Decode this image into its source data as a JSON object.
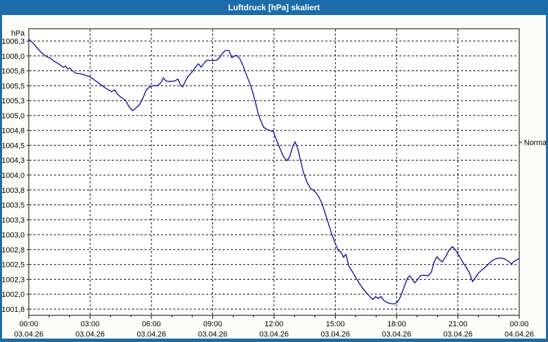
{
  "window": {
    "title": "Luftdruck [hPa] skaliert"
  },
  "colors": {
    "titlebar": "#1b6ca8",
    "border": "#1b6ca8",
    "content_bg": "#fcfcf8",
    "plot_bg": "#ffffff",
    "grid": "#000000",
    "axis": "#000000",
    "line": "#0000ab",
    "title_text": "#ffffff",
    "label_text": "#000000"
  },
  "chart_data": {
    "type": "line",
    "title": "Luftdruck [hPa] skaliert",
    "unit_label": "hPa",
    "grid": "dashed",
    "legend_position": "none",
    "y_axis": {
      "max_value": 1006.25,
      "min_value": 1001.75,
      "step": 0.25,
      "tick_labels": [
        "1006,3",
        "1006,0",
        "1005,8",
        "1005,5",
        "1005,3",
        "1005,0",
        "1004,8",
        "1004,5",
        "1004,3",
        "1004,0",
        "1003,8",
        "1003,5",
        "1003,3",
        "1003,0",
        "1002,8",
        "1002,5",
        "1002,3",
        "1002,0",
        "1001,8"
      ],
      "frame_top_value": 1006.46,
      "frame_bottom_value": 1001.62
    },
    "x_axis": {
      "total_hours": 24,
      "major_step_hours": 3,
      "minor_step_hours": 1,
      "tick_times": [
        "00:00",
        "03:00",
        "06:00",
        "09:00",
        "12:00",
        "15:00",
        "18:00",
        "21:00",
        "00:00"
      ],
      "tick_dates": [
        "03.04.26",
        "03.04.26",
        "03.04.26",
        "03.04.26",
        "03.04.26",
        "03.04.26",
        "03.04.26",
        "03.04.26",
        "04.04.26"
      ]
    },
    "right_marker": {
      "label": "Normal",
      "value": 1004.55
    },
    "series": [
      {
        "name": "Luftdruck skaliert",
        "color": "#0000ab",
        "points": [
          [
            0,
            1006.28
          ],
          [
            10,
            1006.23
          ],
          [
            24,
            1006.14
          ],
          [
            38,
            1006.05
          ],
          [
            52,
            1005.99
          ],
          [
            64,
            1005.96
          ],
          [
            74,
            1005.91
          ],
          [
            84,
            1005.88
          ],
          [
            94,
            1005.84
          ],
          [
            102,
            1005.81
          ],
          [
            108,
            1005.83
          ],
          [
            114,
            1005.78
          ],
          [
            120,
            1005.8
          ],
          [
            128,
            1005.75
          ],
          [
            138,
            1005.71
          ],
          [
            152,
            1005.7
          ],
          [
            164,
            1005.68
          ],
          [
            180,
            1005.65
          ],
          [
            194,
            1005.59
          ],
          [
            209,
            1005.53
          ],
          [
            223,
            1005.47
          ],
          [
            234,
            1005.43
          ],
          [
            244,
            1005.4
          ],
          [
            252,
            1005.43
          ],
          [
            260,
            1005.36
          ],
          [
            270,
            1005.31
          ],
          [
            278,
            1005.28
          ],
          [
            286,
            1005.24
          ],
          [
            294,
            1005.15
          ],
          [
            305,
            1005.08
          ],
          [
            315,
            1005.13
          ],
          [
            325,
            1005.18
          ],
          [
            335,
            1005.29
          ],
          [
            345,
            1005.43
          ],
          [
            355,
            1005.48
          ],
          [
            365,
            1005.5
          ],
          [
            379,
            1005.5
          ],
          [
            389,
            1005.56
          ],
          [
            395,
            1005.63
          ],
          [
            403,
            1005.58
          ],
          [
            415,
            1005.57
          ],
          [
            428,
            1005.58
          ],
          [
            438,
            1005.61
          ],
          [
            446,
            1005.51
          ],
          [
            452,
            1005.48
          ],
          [
            460,
            1005.58
          ],
          [
            468,
            1005.66
          ],
          [
            478,
            1005.72
          ],
          [
            488,
            1005.8
          ],
          [
            498,
            1005.87
          ],
          [
            506,
            1005.81
          ],
          [
            516,
            1005.89
          ],
          [
            524,
            1005.93
          ],
          [
            540,
            1005.92
          ],
          [
            552,
            1005.93
          ],
          [
            560,
            1005.97
          ],
          [
            568,
            1006.04
          ],
          [
            577,
            1006.09
          ],
          [
            588,
            1006.09
          ],
          [
            596,
            1005.97
          ],
          [
            604,
            1006.0
          ],
          [
            611,
            1006.01
          ],
          [
            620,
            1005.95
          ],
          [
            628,
            1005.85
          ],
          [
            636,
            1005.73
          ],
          [
            644,
            1005.61
          ],
          [
            652,
            1005.49
          ],
          [
            659,
            1005.36
          ],
          [
            667,
            1005.19
          ],
          [
            674,
            1005.02
          ],
          [
            682,
            1004.9
          ],
          [
            690,
            1004.8
          ],
          [
            701,
            1004.76
          ],
          [
            718,
            1004.73
          ],
          [
            728,
            1004.58
          ],
          [
            738,
            1004.44
          ],
          [
            748,
            1004.31
          ],
          [
            758,
            1004.24
          ],
          [
            766,
            1004.31
          ],
          [
            774,
            1004.46
          ],
          [
            782,
            1004.56
          ],
          [
            790,
            1004.44
          ],
          [
            798,
            1004.24
          ],
          [
            806,
            1004.05
          ],
          [
            817,
            1003.88
          ],
          [
            827,
            1003.78
          ],
          [
            839,
            1003.73
          ],
          [
            849,
            1003.66
          ],
          [
            859,
            1003.55
          ],
          [
            869,
            1003.38
          ],
          [
            879,
            1003.2
          ],
          [
            889,
            1003.02
          ],
          [
            900,
            1002.85
          ],
          [
            908,
            1002.74
          ],
          [
            918,
            1002.7
          ],
          [
            924,
            1002.62
          ],
          [
            931,
            1002.67
          ],
          [
            940,
            1002.47
          ],
          [
            950,
            1002.38
          ],
          [
            960,
            1002.28
          ],
          [
            972,
            1002.17
          ],
          [
            982,
            1002.09
          ],
          [
            992,
            1002.02
          ],
          [
            1002,
            1001.96
          ],
          [
            1010,
            1001.91
          ],
          [
            1018,
            1001.96
          ],
          [
            1026,
            1001.93
          ],
          [
            1034,
            1001.96
          ],
          [
            1042,
            1001.9
          ],
          [
            1052,
            1001.86
          ],
          [
            1065,
            1001.84
          ],
          [
            1075,
            1001.84
          ],
          [
            1081,
            1001.86
          ],
          [
            1089,
            1001.93
          ],
          [
            1097,
            1002.04
          ],
          [
            1105,
            1002.17
          ],
          [
            1113,
            1002.28
          ],
          [
            1119,
            1002.31
          ],
          [
            1127,
            1002.24
          ],
          [
            1133,
            1002.19
          ],
          [
            1141,
            1002.24
          ],
          [
            1149,
            1002.31
          ],
          [
            1161,
            1002.32
          ],
          [
            1173,
            1002.31
          ],
          [
            1182,
            1002.37
          ],
          [
            1190,
            1002.54
          ],
          [
            1198,
            1002.63
          ],
          [
            1206,
            1002.58
          ],
          [
            1214,
            1002.54
          ],
          [
            1224,
            1002.63
          ],
          [
            1234,
            1002.74
          ],
          [
            1244,
            1002.8
          ],
          [
            1252,
            1002.75
          ],
          [
            1262,
            1002.66
          ],
          [
            1272,
            1002.56
          ],
          [
            1282,
            1002.47
          ],
          [
            1293,
            1002.37
          ],
          [
            1303,
            1002.21
          ],
          [
            1311,
            1002.28
          ],
          [
            1321,
            1002.36
          ],
          [
            1333,
            1002.42
          ],
          [
            1345,
            1002.48
          ],
          [
            1357,
            1002.55
          ],
          [
            1369,
            1002.59
          ],
          [
            1383,
            1002.61
          ],
          [
            1395,
            1002.6
          ],
          [
            1407,
            1002.56
          ],
          [
            1417,
            1002.51
          ],
          [
            1427,
            1002.56
          ],
          [
            1440,
            1002.6
          ]
        ]
      }
    ]
  }
}
